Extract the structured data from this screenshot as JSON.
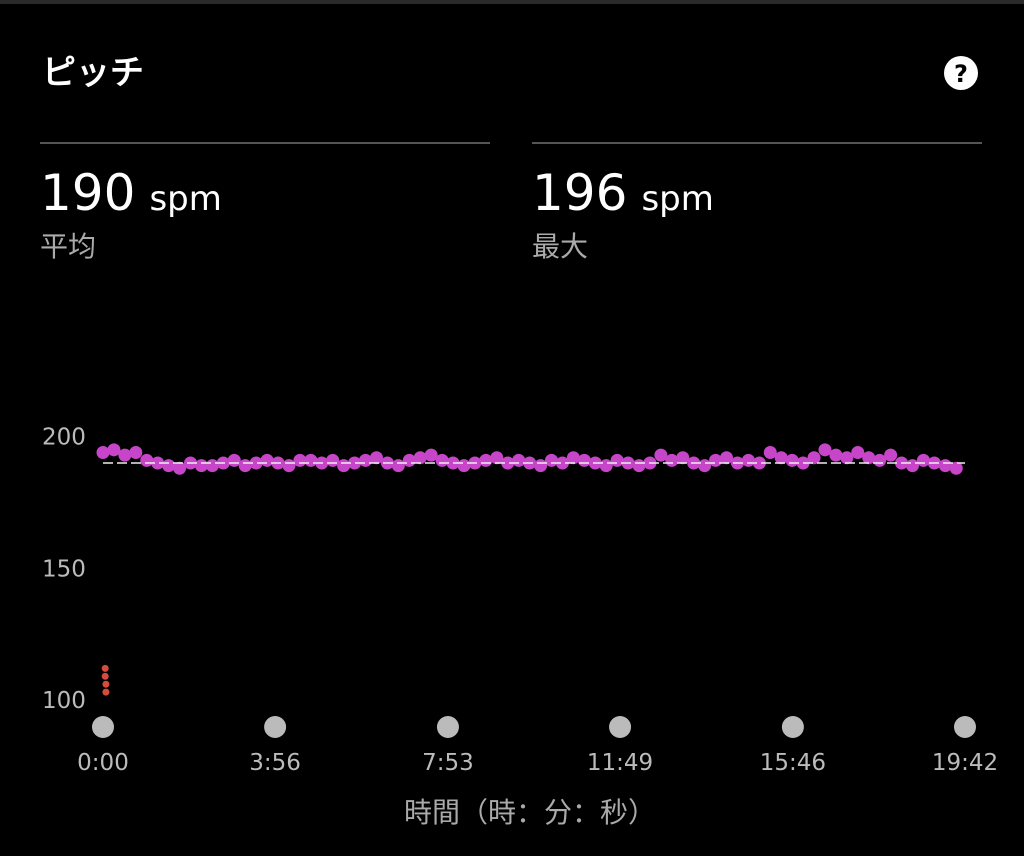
{
  "header": {
    "title": "ピッチ"
  },
  "stats": [
    {
      "value": "190",
      "unit": "spm",
      "label": "平均"
    },
    {
      "value": "196",
      "unit": "spm",
      "label": "最大"
    }
  ],
  "chart_data": {
    "type": "scatter",
    "x_label": "時間（時：分：秒）",
    "xlim": [
      0,
      1182
    ],
    "xticks": [
      {
        "value": 0,
        "label": "0:00"
      },
      {
        "value": 236,
        "label": "3:56"
      },
      {
        "value": 473,
        "label": "7:53"
      },
      {
        "value": 709,
        "label": "11:49"
      },
      {
        "value": 946,
        "label": "15:46"
      },
      {
        "value": 1182,
        "label": "19:42"
      }
    ],
    "ylim": [
      100,
      250
    ],
    "yticks": [
      100,
      150,
      200
    ],
    "average": 190,
    "series": [
      {
        "color": "#c745c9",
        "x": [
          0,
          15,
          30,
          45,
          60,
          75,
          90,
          105,
          120,
          135,
          150,
          165,
          180,
          195,
          210,
          225,
          240,
          255,
          270,
          285,
          300,
          315,
          330,
          345,
          360,
          375,
          390,
          405,
          420,
          435,
          450,
          465,
          480,
          495,
          510,
          525,
          540,
          555,
          570,
          585,
          600,
          615,
          630,
          645,
          660,
          675,
          690,
          705,
          720,
          735,
          750,
          765,
          780,
          795,
          810,
          825,
          840,
          855,
          870,
          885,
          900,
          915,
          930,
          945,
          960,
          975,
          990,
          1005,
          1020,
          1035,
          1050,
          1065,
          1080,
          1095,
          1110,
          1125,
          1140,
          1155,
          1170
        ],
        "values": [
          194,
          195,
          193,
          194,
          191,
          190,
          189,
          188,
          190,
          189,
          189,
          190,
          191,
          189,
          190,
          191,
          190,
          189,
          191,
          191,
          190,
          191,
          189,
          190,
          191,
          192,
          190,
          189,
          191,
          192,
          193,
          191,
          190,
          189,
          190,
          191,
          192,
          190,
          191,
          190,
          189,
          191,
          190,
          192,
          191,
          190,
          189,
          191,
          190,
          189,
          190,
          193,
          191,
          192,
          190,
          189,
          191,
          192,
          190,
          191,
          190,
          194,
          192,
          191,
          190,
          192,
          195,
          193,
          192,
          194,
          192,
          191,
          193,
          190,
          189,
          191,
          190,
          189,
          188
        ]
      },
      {
        "color": "#d84a3c",
        "x": [
          3,
          3,
          4,
          4
        ],
        "values": [
          112,
          109,
          106,
          103
        ]
      }
    ]
  }
}
